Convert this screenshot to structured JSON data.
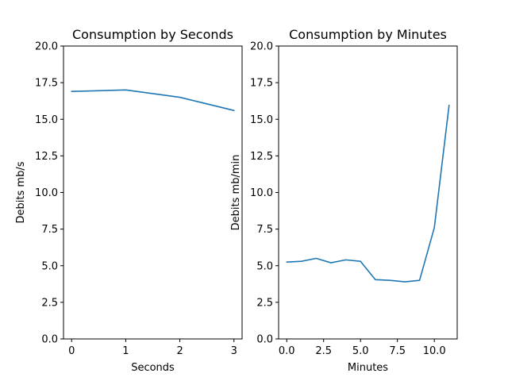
{
  "chart_data": [
    {
      "type": "line",
      "title": "Consumption by Seconds",
      "xlabel": "Seconds",
      "ylabel": "Debits mb/s",
      "xlim": [
        -0.15,
        3.15
      ],
      "ylim": [
        0,
        20
      ],
      "xticks": [
        0,
        1,
        2,
        3
      ],
      "xtick_labels": [
        "0",
        "1",
        "2",
        "3"
      ],
      "yticks": [
        0,
        2.5,
        5,
        7.5,
        10,
        12.5,
        15,
        17.5,
        20
      ],
      "ytick_labels": [
        "0.0",
        "2.5",
        "5.0",
        "7.5",
        "10.0",
        "12.5",
        "15.0",
        "17.5",
        "20.0"
      ],
      "grid": false,
      "color": "#1f77b4",
      "series": [
        {
          "x": [
            0,
            1,
            2,
            3
          ],
          "values": [
            16.9,
            17.0,
            16.5,
            15.6
          ]
        }
      ]
    },
    {
      "type": "line",
      "title": "Consumption by Minutes",
      "xlabel": "Minutes",
      "ylabel": "Debits mb/min",
      "xlim": [
        -0.55,
        11.55
      ],
      "ylim": [
        0,
        20
      ],
      "xticks": [
        0,
        2.5,
        5,
        7.5,
        10
      ],
      "xtick_labels": [
        "0.0",
        "2.5",
        "5.0",
        "7.5",
        "10.0"
      ],
      "yticks": [
        0,
        2.5,
        5,
        7.5,
        10,
        12.5,
        15,
        17.5,
        20
      ],
      "ytick_labels": [
        "0.0",
        "2.5",
        "5.0",
        "7.5",
        "10.0",
        "12.5",
        "15.0",
        "17.5",
        "20.0"
      ],
      "grid": false,
      "color": "#1f77b4",
      "series": [
        {
          "x": [
            0,
            1,
            2,
            3,
            4,
            5,
            6,
            7,
            8,
            9,
            10,
            11
          ],
          "values": [
            5.25,
            5.3,
            5.5,
            5.2,
            5.4,
            5.3,
            4.05,
            4.0,
            3.9,
            4.0,
            7.6,
            15.95
          ]
        }
      ]
    }
  ]
}
